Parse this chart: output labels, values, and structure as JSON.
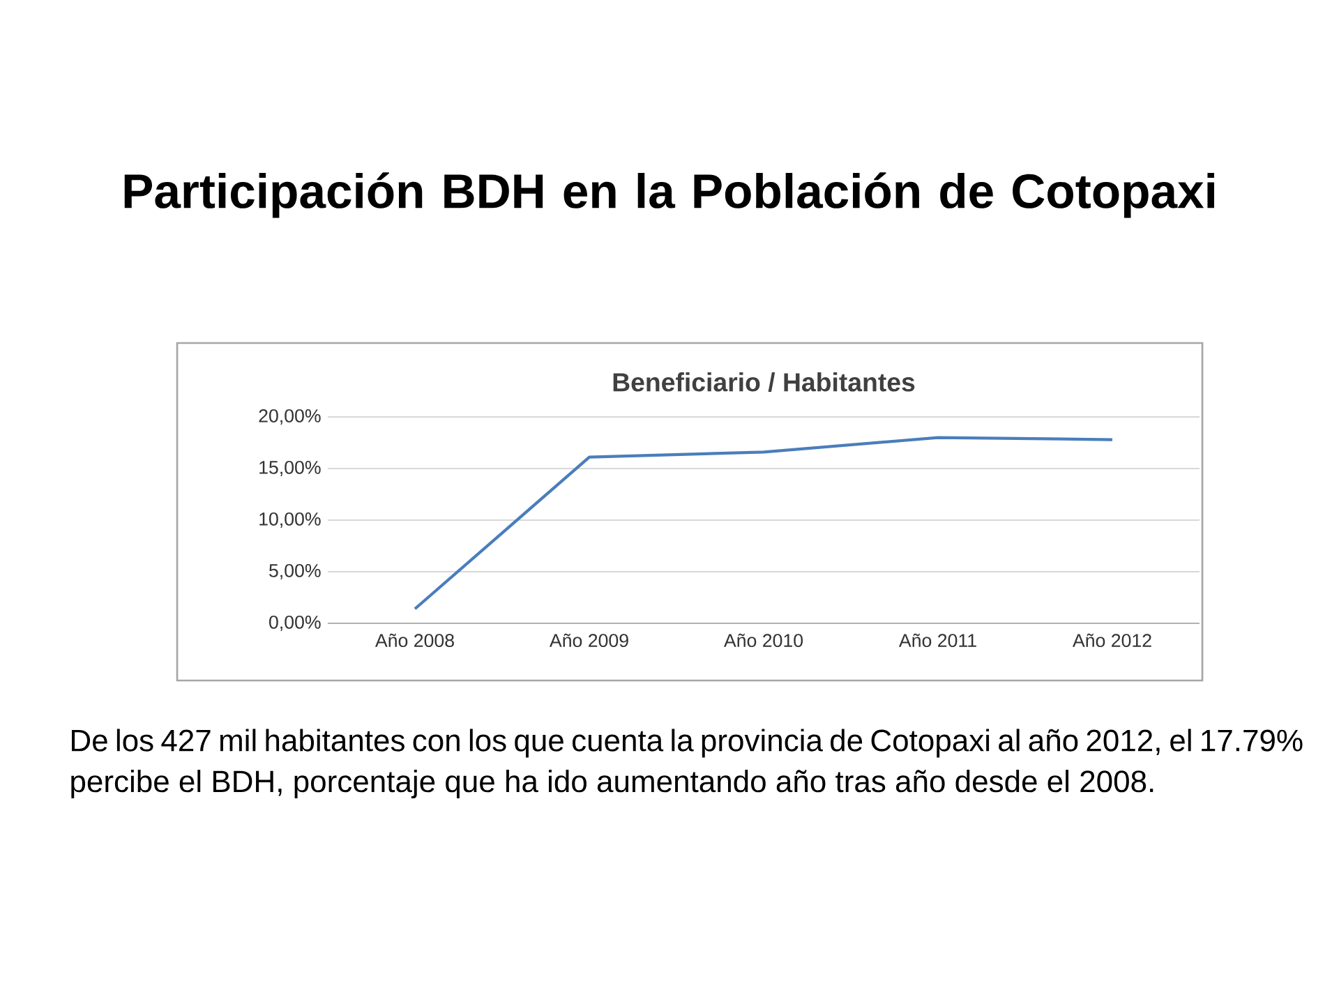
{
  "chart_data": {
    "type": "line",
    "title": "Participación BDH en la Población de Cotopaxi",
    "subtitle": "Beneficiario / Habitantes",
    "categories": [
      "Año 2008",
      "Año 2009",
      "Año 2010",
      "Año 2011",
      "Año 2012"
    ],
    "series": [
      {
        "color": "#4a7ebb",
        "values": [
          1.4,
          16.1,
          16.6,
          18.0,
          17.8
        ]
      }
    ],
    "ylim": [
      0,
      20
    ],
    "yticks": [
      {
        "value": 0,
        "label": "0,00%"
      },
      {
        "value": 5,
        "label": "5,00%"
      },
      {
        "value": 10,
        "label": "10,00%"
      },
      {
        "value": 15,
        "label": "15,00%"
      },
      {
        "value": 20,
        "label": "20,00%"
      }
    ],
    "grid": "y",
    "marker": "none",
    "line_style": "solid",
    "annotations": [
      "De los 427 mil habitantes con los que cuenta la provincia de Cotopaxi al año 2012, el 17.79% percibe el BDH, porcentaje que ha ido aumentando año tras año desde el 2008."
    ]
  }
}
